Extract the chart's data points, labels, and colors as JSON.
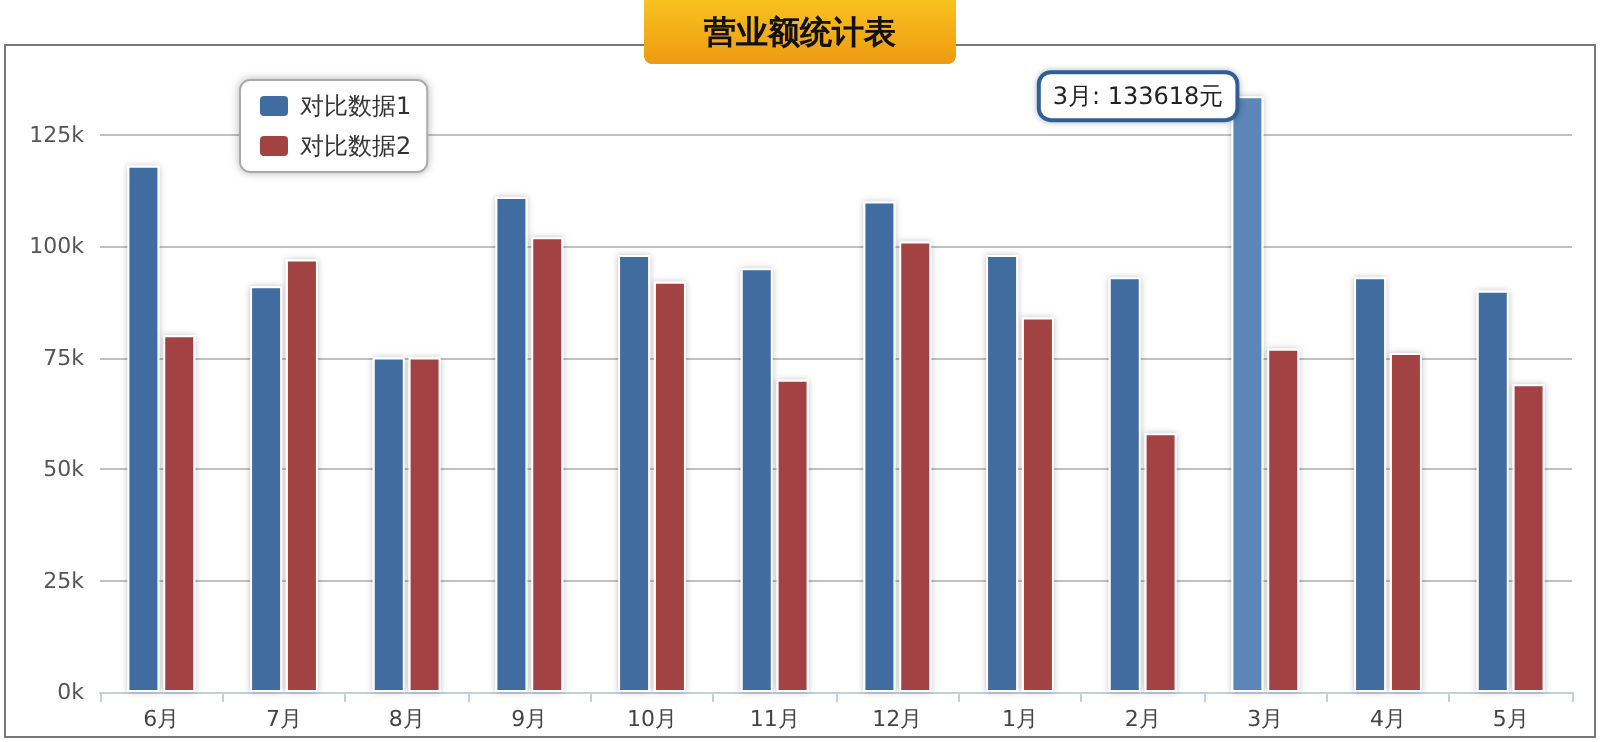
{
  "chart_data": {
    "type": "bar",
    "title": "营业额统计表",
    "categories": [
      "6月",
      "7月",
      "8月",
      "9月",
      "10月",
      "11月",
      "12月",
      "1月",
      "2月",
      "3月",
      "4月",
      "5月"
    ],
    "series": [
      {
        "name": "对比数据1",
        "color": "#416c9f",
        "colors": [
          "#416c9f",
          "#416c9f",
          "#416c9f",
          "#416c9f",
          "#416c9f",
          "#416c9f",
          "#416c9f",
          "#416c9f",
          "#416c9f",
          "#5b86b8",
          "#416c9f",
          "#416c9f"
        ],
        "values": [
          118000,
          91000,
          75000,
          111000,
          98000,
          95000,
          110000,
          98000,
          93000,
          133618,
          93000,
          90000
        ]
      },
      {
        "name": "对比数据2",
        "color": "#a24342",
        "values": [
          80000,
          97000,
          75000,
          102000,
          92000,
          70000,
          101000,
          84000,
          58000,
          77000,
          76000,
          69000
        ]
      }
    ],
    "ylim": [
      0,
      135000
    ],
    "yticks": [
      {
        "value": 0,
        "label": "0k"
      },
      {
        "value": 25000,
        "label": "25k"
      },
      {
        "value": 50000,
        "label": "50k"
      },
      {
        "value": 75000,
        "label": "75k"
      },
      {
        "value": 100000,
        "label": "100k"
      },
      {
        "value": 125000,
        "label": "125k"
      }
    ],
    "grid": "y",
    "legend": "top left",
    "annotations": [
      {
        "text": "3月: 133618元",
        "x": "3月",
        "y": 133618
      }
    ]
  }
}
